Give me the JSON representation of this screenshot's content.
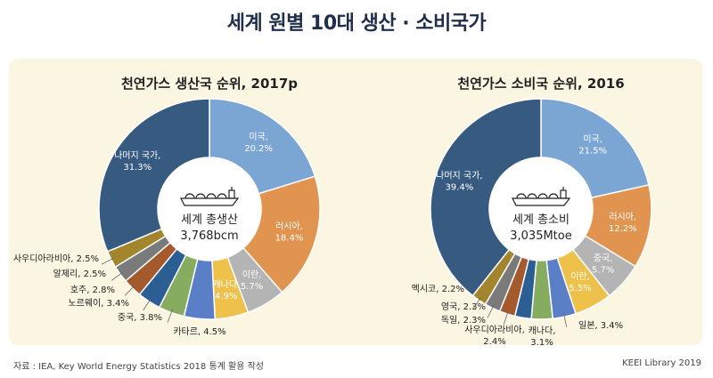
{
  "title": "세계 원별 10대 생산 · 소비국가",
  "source": "자료 : IEA, Key World Energy Statistics 2018 통계 활용 작성",
  "credit": "KEEI Library 2019",
  "chart_data": [
    {
      "type": "pie",
      "title": "천연가스 생산국 순위, 2017p",
      "center_label": "세계 총생산",
      "center_value": "3,768bcm",
      "slices": [
        {
          "name": "미국",
          "value": 20.2,
          "label": "20.2%",
          "color": "#7ba5d2"
        },
        {
          "name": "러시아",
          "value": 18.4,
          "label": "18.4%",
          "color": "#e0944f"
        },
        {
          "name": "이란",
          "value": 5.7,
          "label": "5.7%",
          "color": "#b4b4b4"
        },
        {
          "name": "캐나다",
          "value": 4.9,
          "label": "4.9%",
          "color": "#edc14a"
        },
        {
          "name": "카타르",
          "value": 4.5,
          "label": "4.5%",
          "color": "#5b7fc7"
        },
        {
          "name": "중국",
          "value": 3.8,
          "label": "3.8%",
          "color": "#86ad5f"
        },
        {
          "name": "노르웨이",
          "value": 3.4,
          "label": "3.4%",
          "color": "#2b5e93"
        },
        {
          "name": "호주",
          "value": 2.8,
          "label": "2.8%",
          "color": "#a45a2c"
        },
        {
          "name": "알제리",
          "value": 2.5,
          "label": "2.5%",
          "color": "#7a7a7a"
        },
        {
          "name": "사우디아라비아",
          "value": 2.5,
          "label": "2.5%",
          "color": "#a2852c"
        },
        {
          "name": "나머지 국가",
          "value": 31.3,
          "label": "31.3%",
          "color": "#375a80"
        }
      ]
    },
    {
      "type": "pie",
      "title": "천연가스 소비국 순위, 2016",
      "center_label": "세계 총소비",
      "center_value": "3,035Mtoe",
      "slices": [
        {
          "name": "미국",
          "value": 21.5,
          "label": "21.5%",
          "color": "#7ba5d2"
        },
        {
          "name": "러시아",
          "value": 12.2,
          "label": "12.2%",
          "color": "#e0944f"
        },
        {
          "name": "중국",
          "value": 5.7,
          "label": "5.7%",
          "color": "#b4b4b4"
        },
        {
          "name": "이란",
          "value": 5.5,
          "label": "5.5%",
          "color": "#edc14a"
        },
        {
          "name": "일본",
          "value": 3.4,
          "label": "3.4%",
          "color": "#5b7fc7"
        },
        {
          "name": "캐나다",
          "value": 3.1,
          "label": "3.1%",
          "color": "#86ad5f"
        },
        {
          "name": "사우디아라비아",
          "value": 2.4,
          "label": "2.4%",
          "color": "#2b5e93"
        },
        {
          "name": "독일",
          "value": 2.3,
          "label": "2.3%",
          "color": "#a45a2c"
        },
        {
          "name": "영국",
          "value": 2.3,
          "label": "2.3%",
          "color": "#7a7a7a"
        },
        {
          "name": "멕시코",
          "value": 2.2,
          "label": "2.2%",
          "color": "#a2852c"
        },
        {
          "name": "나머지 국가",
          "value": 39.4,
          "label": "39.4%",
          "color": "#375a80"
        }
      ]
    }
  ]
}
